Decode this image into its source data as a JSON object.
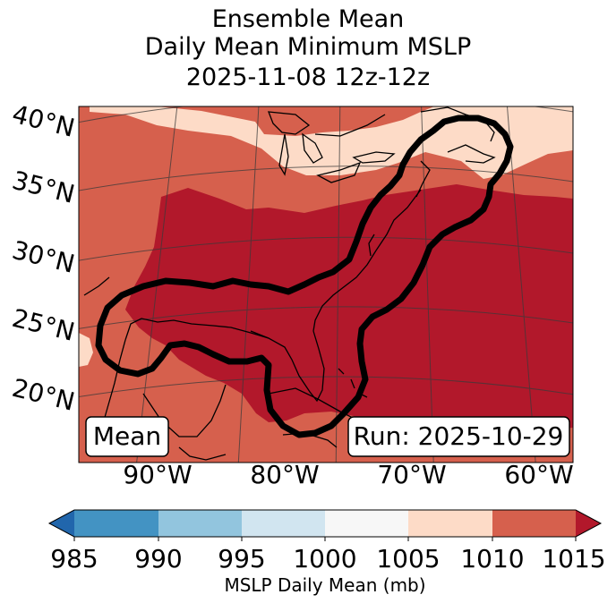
{
  "title": {
    "line1": "Ensemble Mean",
    "line2": "Daily Mean Minimum MSLP",
    "line3": "2025-11-08 12z-12z"
  },
  "map": {
    "lat_labels": [
      "40°N",
      "35°N",
      "30°N",
      "25°N",
      "20°N"
    ],
    "lon_labels": [
      "90°W",
      "80°W",
      "70°W",
      "60°W"
    ],
    "left_box": "Mean",
    "right_box": "Run: 2025-10-29",
    "colors": {
      "p1005_1010": "#fddbc7",
      "p1010_1015": "#d6604d",
      "p1015_plus": "#b2182b",
      "contour": "#000000",
      "coast": "#000000"
    }
  },
  "colorbar": {
    "label": "MSLP Daily Mean (mb)",
    "ticks": [
      "985",
      "990",
      "995",
      "1000",
      "1005",
      "1010",
      "1015"
    ],
    "colors": [
      "#2166ac",
      "#4393c3",
      "#92c5de",
      "#d1e5f0",
      "#f7f7f7",
      "#fddbc7",
      "#d6604d",
      "#b2182b"
    ]
  }
}
